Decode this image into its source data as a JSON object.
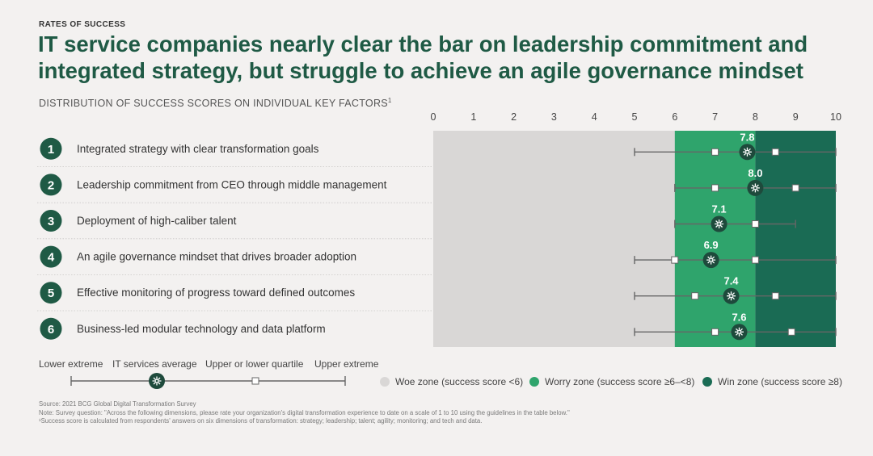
{
  "kicker": "RATES OF SUCCESS",
  "title": "IT service companies nearly clear the bar on leadership commitment and integrated strategy, but struggle to achieve an agile governance mindset",
  "subtitle": "DISTRIBUTION OF SUCCESS SCORES ON INDIVIDUAL KEY FACTORS",
  "subtitle_footnote": "1",
  "colors": {
    "title": "#1f5a45",
    "woe_zone": "#d9d7d6",
    "worry_zone": "#2fa46c",
    "win_zone": "#1a6b54",
    "badge": "#1f5a45",
    "marker_dark": "#1e4a3c"
  },
  "chart_data": {
    "type": "range",
    "x_ticks": [
      0,
      1,
      2,
      3,
      4,
      5,
      6,
      7,
      8,
      9,
      10
    ],
    "xlim": [
      0,
      10
    ],
    "zones": [
      {
        "name": "Woe zone (success score <6)",
        "from": 0,
        "to": 6
      },
      {
        "name": "Worry zone (success score ≥6–<8)",
        "from": 6,
        "to": 8
      },
      {
        "name": "Win zone (success score ≥8)",
        "from": 8,
        "to": 10
      }
    ],
    "rows": [
      {
        "rank": "1",
        "label": "Integrated strategy with clear transformation goals",
        "lower_extreme": 5,
        "lower_quartile": 7,
        "average": 7.8,
        "average_label": "7.8",
        "upper_quartile": 8.5,
        "upper_extreme": 10
      },
      {
        "rank": "2",
        "label": "Leadership commitment from CEO through middle management",
        "lower_extreme": 6,
        "lower_quartile": 7,
        "average": 8.0,
        "average_label": "8.0",
        "upper_quartile": 9,
        "upper_extreme": 10
      },
      {
        "rank": "3",
        "label": "Deployment of high-caliber talent",
        "lower_extreme": 6,
        "lower_quartile": 7,
        "average": 7.1,
        "average_label": "7.1",
        "upper_quartile": 8,
        "upper_extreme": 9
      },
      {
        "rank": "4",
        "label": "An agile governance mindset that drives broader adoption",
        "lower_extreme": 5,
        "lower_quartile": 6,
        "average": 6.9,
        "average_label": "6.9",
        "upper_quartile": 8,
        "upper_extreme": 10
      },
      {
        "rank": "5",
        "label": "Effective monitoring of progress toward defined outcomes",
        "lower_extreme": 5,
        "lower_quartile": 6.5,
        "average": 7.4,
        "average_label": "7.4",
        "upper_quartile": 8.5,
        "upper_extreme": 10
      },
      {
        "rank": "6",
        "label": "Business-led modular technology and data platform",
        "lower_extreme": 5,
        "lower_quartile": 7,
        "average": 7.6,
        "average_label": "7.6",
        "upper_quartile": 8.9,
        "upper_extreme": 10
      }
    ]
  },
  "legend": {
    "lower_extreme": "Lower extreme",
    "average": "IT services average",
    "quartile": "Upper or lower quartile",
    "upper_extreme": "Upper extreme",
    "woe": "Woe zone (success score <6)",
    "worry": "Worry zone (success score ≥6–<8)",
    "win": "Win zone (success score ≥8)"
  },
  "footer": {
    "source": "Source: 2021 BCG Global Digital Transformation Survey",
    "note": "Note: Survey question: \"Across the following dimensions, please rate your organization's digital transformation experience to date on a scale of 1 to 10 using the guidelines in the table below.\"",
    "footnote": "¹Success score is calculated from respondents' answers on six dimensions of transformation: strategy; leadership; talent; agility; monitoring; and tech and data."
  }
}
